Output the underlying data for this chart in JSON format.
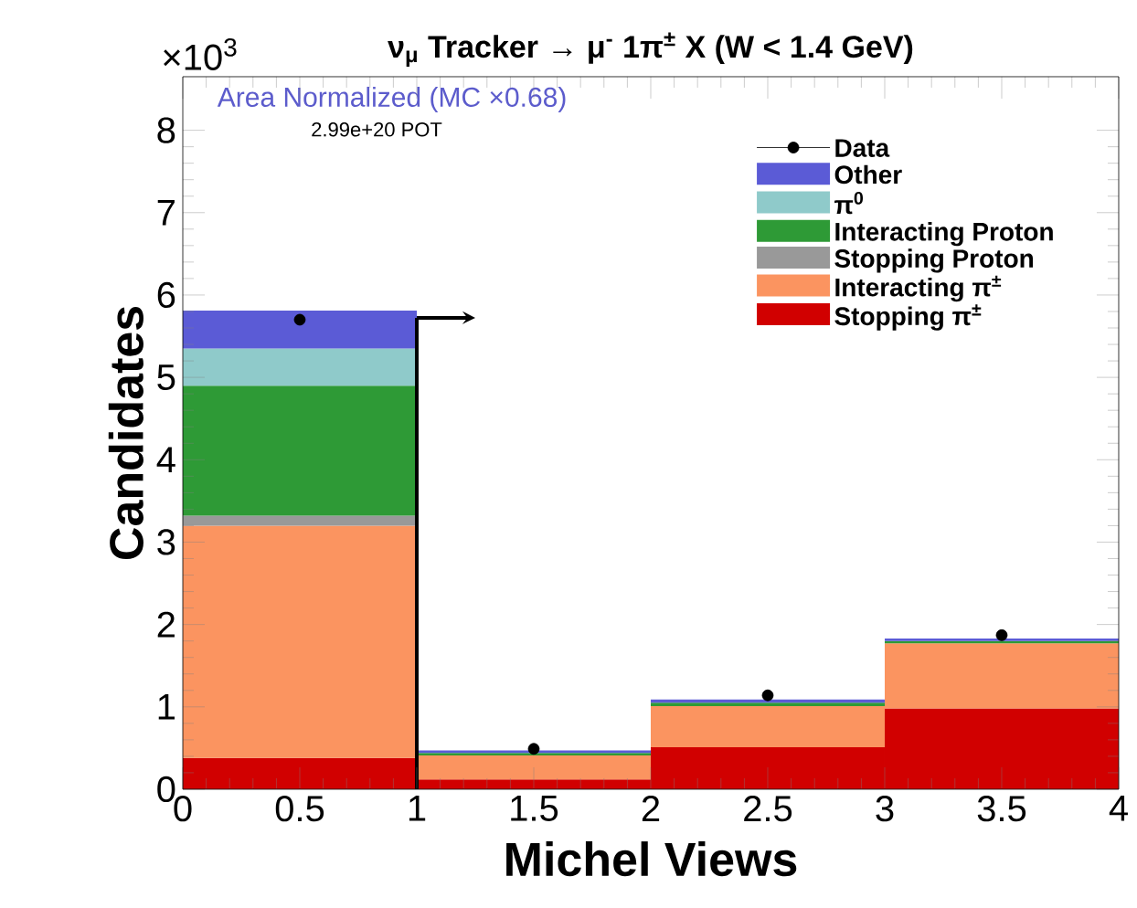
{
  "chart_data": {
    "type": "bar",
    "title": "ν$_{μ}$ Tracker → μ$^{-}$ 1π$^{±}$ X  (W < 1.4 GeV)",
    "xlabel": "Michel Views",
    "ylabel": "Candidates",
    "annotations": [
      "×10$^{3}$",
      "Area Normalized (MC ×0.68)",
      "2.99e+20 POT"
    ],
    "x": [
      0.5,
      1.5,
      2.5,
      3.5
    ],
    "stacked": true,
    "series": [
      {
        "name": "Stopping π$^{±}$",
        "color": "#d10000",
        "values": [
          0.38,
          0.12,
          0.51,
          0.98
        ]
      },
      {
        "name": "Interacting π$^{±}$",
        "color": "#fb9460",
        "values": [
          2.82,
          0.29,
          0.5,
          0.79
        ]
      },
      {
        "name": "Stopping Proton",
        "color": "#999999",
        "values": [
          0.12,
          0.0,
          0.0,
          0.0
        ]
      },
      {
        "name": "Interacting Proton",
        "color": "#2e9a36",
        "values": [
          1.58,
          0.03,
          0.04,
          0.03
        ]
      },
      {
        "name": "π$^{0}$",
        "color": "#8fcaca",
        "values": [
          0.45,
          0.0,
          0.0,
          0.0
        ]
      },
      {
        "name": "Other",
        "color": "#5b5bd6",
        "values": [
          0.46,
          0.03,
          0.04,
          0.03
        ]
      },
      {
        "name": "Data",
        "type": "scatter",
        "color": "#000000",
        "x": [
          0.5,
          1.5,
          2.5,
          3.5
        ],
        "values": [
          5.7,
          0.49,
          1.14,
          1.87
        ]
      }
    ],
    "ref_lines": [
      {
        "axis": "x",
        "value": 1
      }
    ],
    "xlim": [
      0,
      4
    ],
    "xticks": [
      0,
      0.5,
      1,
      1.5,
      2,
      2.5,
      3,
      3.5,
      4
    ],
    "ylim": [
      0,
      8.65
    ],
    "yticks": [
      0,
      1,
      2,
      3,
      4,
      5,
      6,
      7,
      8
    ],
    "legend": "top right",
    "marker": "circle",
    "grid": false
  }
}
